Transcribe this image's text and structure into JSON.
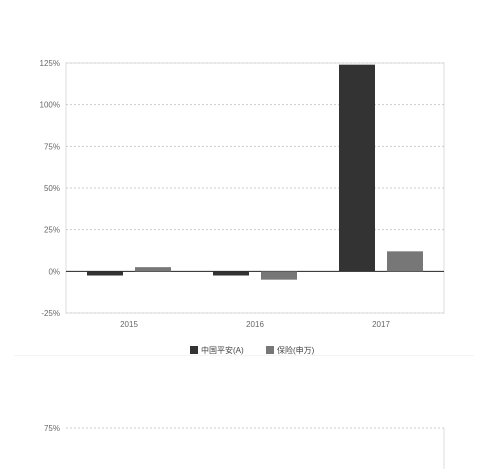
{
  "chart_data": [
    {
      "type": "bar",
      "title": "",
      "xlabel": "",
      "ylabel": "",
      "categories": [
        "2015",
        "2016",
        "2017"
      ],
      "series": [
        {
          "name": "中国平安(A)",
          "color": "#333333",
          "values": [
            -2.5,
            -2.5,
            124
          ]
        },
        {
          "name": "保险(申万)",
          "color": "#777777",
          "values": [
            2.5,
            -5,
            12
          ]
        }
      ],
      "ylim": [
        -25,
        125
      ],
      "yticks": [
        "-25%",
        "0%",
        "25%",
        "50%",
        "75%",
        "100%",
        "125%"
      ],
      "grid": true,
      "legend_position": "bottom"
    },
    {
      "type": "bar",
      "title": "",
      "yticks": [
        "75%"
      ],
      "grid": true,
      "series": []
    }
  ]
}
